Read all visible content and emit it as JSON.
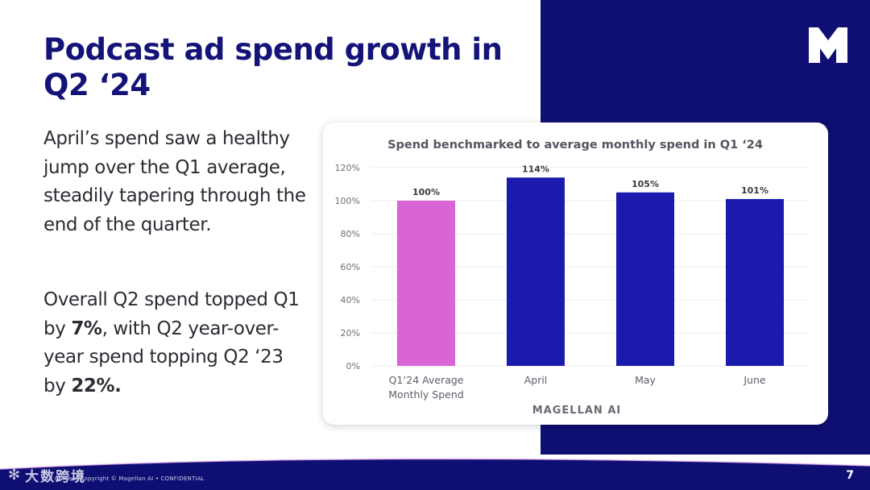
{
  "slide": {
    "title": "Podcast ad spend growth in Q2 ‘24",
    "paragraph1": "April’s spend saw a healthy jump over the Q1 average, steadily tapering through the end of the quarter.",
    "paragraph2": {
      "part1": "Overall Q2 spend topped Q1 by ",
      "bold1": "7%",
      "part2": ", with Q2 year-over-year spend topping Q2 ‘23 by ",
      "bold2": "22%."
    },
    "footer_text": "All Content Copyright © Magellan AI • CONFIDENTIAL",
    "watermark_text": "大数跨境",
    "page_number": "7",
    "logo_icon": "magellan-m-logo-icon",
    "colors": {
      "navy": "#0f0f73",
      "title": "#141478",
      "baseline_bar": "#d964d6",
      "month_bar": "#1a1aad"
    }
  },
  "chart_data": {
    "type": "bar",
    "title": "Spend benchmarked to average monthly spend in Q1 ‘24",
    "categories": [
      "Q1’24 Average\nMonthly Spend",
      "April",
      "May",
      "June"
    ],
    "values": [
      100,
      114,
      105,
      101
    ],
    "value_labels": [
      "100%",
      "114%",
      "105%",
      "101%"
    ],
    "y_ticks": [
      "0%",
      "20%",
      "40%",
      "60%",
      "80%",
      "100%",
      "120%"
    ],
    "ylim": [
      0,
      120
    ],
    "grid": true,
    "bar_colors": [
      "#d964d6",
      "#1a1aad",
      "#1a1aad",
      "#1a1aad"
    ],
    "source": "MAGELLAN AI"
  }
}
